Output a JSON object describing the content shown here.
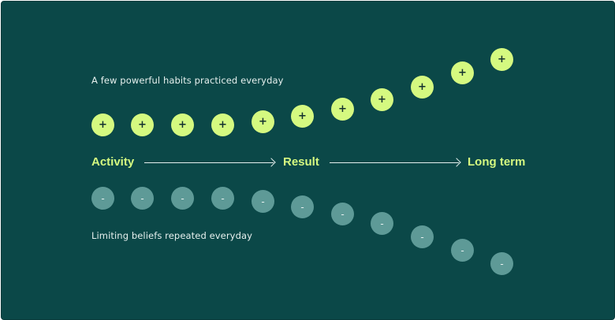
{
  "captions": {
    "top": "A few powerful habits practiced everyday",
    "bottom": "Limiting beliefs repeated everyday"
  },
  "stages": {
    "activity": "Activity",
    "result": "Result",
    "long_term": "Long term"
  },
  "symbols": {
    "plus": "+",
    "minus": "-"
  },
  "colors": {
    "background": "#0b4848",
    "positive": "#d5f980",
    "negative": "#5e9a97",
    "stage_text": "#d5f980",
    "caption_text": "#e6f0ee"
  }
}
